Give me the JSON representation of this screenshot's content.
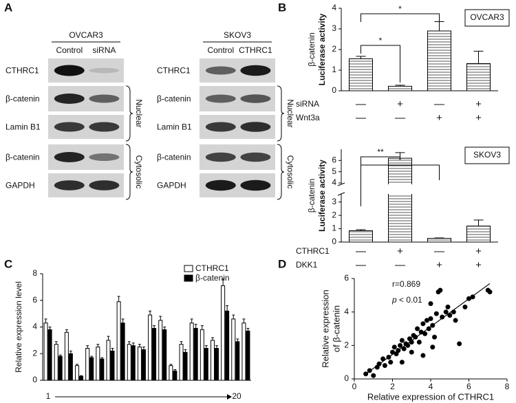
{
  "panels": {
    "A": {
      "letter": "A",
      "blots": [
        {
          "cell_line": "OVCAR3",
          "lanes": [
            "Control",
            "siRNA"
          ],
          "rows": [
            "CTHRC1",
            "β-catenin",
            "Lamin B1",
            "β-catenin",
            "GAPDH"
          ],
          "groups": [
            "Nuclear",
            "Cytosolic"
          ]
        },
        {
          "cell_line": "SKOV3",
          "lanes": [
            "Control",
            "CTHRC1"
          ],
          "rows": [
            "CTHRC1",
            "β-catenin",
            "Lamin B1",
            "β-catenin",
            "GAPDH"
          ],
          "groups": [
            "Nuclear",
            "Cytosolic"
          ]
        }
      ]
    },
    "B": {
      "letter": "B"
    },
    "C": {
      "letter": "C"
    },
    "D": {
      "letter": "D"
    }
  },
  "chart_data": [
    {
      "type": "bar",
      "legend_box": "OVCAR3",
      "y_label": [
        "β-catenin",
        "Luciferase activity"
      ],
      "categories": [
        null,
        null,
        null,
        null
      ],
      "values": [
        1.55,
        0.22,
        2.9,
        1.32
      ],
      "errors": [
        0.12,
        0.05,
        0.45,
        0.6
      ],
      "color": "#ffffff",
      "hatch": true,
      "ylim": [
        0,
        4
      ],
      "yticks": [
        0,
        1,
        2,
        3,
        4
      ],
      "significance": [
        "*",
        "*"
      ],
      "treatments": [
        {
          "name": "siRNA",
          "signs": [
            "—",
            "+",
            "—",
            "+"
          ]
        },
        {
          "name": "Wnt3a",
          "signs": [
            "—",
            "—",
            "+",
            "+"
          ]
        }
      ]
    },
    {
      "type": "bar",
      "legend_box": "SKOV3",
      "y_label": [
        "β-catenin",
        "Luciferase activity"
      ],
      "categories": [
        null,
        null,
        null,
        null
      ],
      "values": [
        0.85,
        6.2,
        0.28,
        1.2
      ],
      "errors": [
        0.08,
        0.5,
        0.03,
        0.45
      ],
      "color": "#ffffff",
      "hatch": true,
      "ylim": [
        0,
        7
      ],
      "yticks": [
        0,
        1,
        2,
        3,
        4,
        5,
        6
      ],
      "axis_break": [
        3.5,
        4
      ],
      "significance": [
        "**",
        "*"
      ],
      "treatments": [
        {
          "name": "CTHRC1",
          "signs": [
            "—",
            "+",
            "—",
            "+"
          ]
        },
        {
          "name": "DKK1",
          "signs": [
            "—",
            "—",
            "+",
            "+"
          ]
        }
      ]
    },
    {
      "type": "grouped_bar",
      "y_label": "Relative expression level",
      "x_annotations": [
        "1",
        "20"
      ],
      "categories": [
        null,
        null,
        null,
        null,
        null,
        null,
        null,
        null,
        null,
        null,
        null,
        null,
        null,
        null,
        null,
        null,
        null,
        null,
        null,
        null
      ],
      "series": [
        {
          "name": "CTHRC1",
          "color": "#ffffff",
          "values": [
            4.3,
            2.7,
            3.6,
            1.1,
            2.4,
            2.5,
            3.0,
            5.9,
            2.7,
            2.5,
            4.9,
            4.5,
            1.1,
            2.7,
            4.3,
            3.8,
            3.0,
            7.1,
            4.6,
            4.3
          ],
          "errors": [
            0.3,
            0.2,
            0.2,
            0.1,
            0.2,
            0.2,
            0.3,
            0.4,
            0.2,
            0.2,
            0.3,
            0.3,
            0.1,
            0.2,
            0.3,
            0.3,
            0.2,
            0.5,
            0.3,
            0.3
          ]
        },
        {
          "name": "β-catenin",
          "color": "#000000",
          "values": [
            3.8,
            1.8,
            2.0,
            0.3,
            1.7,
            1.6,
            2.2,
            4.3,
            2.6,
            2.3,
            3.9,
            3.8,
            0.7,
            2.1,
            3.9,
            2.4,
            2.4,
            5.2,
            2.9,
            3.7
          ],
          "errors": [
            0.2,
            0.1,
            0.2,
            0.05,
            0.1,
            0.1,
            0.2,
            0.3,
            0.2,
            0.2,
            0.2,
            0.2,
            0.1,
            0.2,
            0.3,
            0.2,
            0.2,
            0.4,
            0.2,
            0.2
          ]
        }
      ],
      "ylim": [
        0,
        8
      ],
      "yticks": [
        0,
        2,
        4,
        6,
        8
      ]
    },
    {
      "type": "scatter",
      "x_label": "Relative expression of CTHRC1",
      "y_label": [
        "Relative expression",
        "of β-catenin"
      ],
      "annotations": {
        "r": "r=0.869",
        "p": "p",
        "p_rest": " < 0.01"
      },
      "color": "#000000",
      "x": [
        0.6,
        0.8,
        1.0,
        1.2,
        1.3,
        1.5,
        1.6,
        1.8,
        1.9,
        2.0,
        2.1,
        2.2,
        2.3,
        2.4,
        2.5,
        2.6,
        2.7,
        2.8,
        2.9,
        3.0,
        3.0,
        3.1,
        3.2,
        3.3,
        3.4,
        3.5,
        3.6,
        3.7,
        3.8,
        3.9,
        4.0,
        4.1,
        4.2,
        4.3,
        4.4,
        4.5,
        4.6,
        4.8,
        4.9,
        5.0,
        5.2,
        5.5,
        5.8,
        6.0,
        6.2,
        7.0,
        7.1,
        2.5,
        3.6,
        4.1,
        4.0,
        5.3
      ],
      "y": [
        0.3,
        0.5,
        0.2,
        0.7,
        0.9,
        1.2,
        0.8,
        1.3,
        1.0,
        1.6,
        1.9,
        1.5,
        1.7,
        2.0,
        2.3,
        1.8,
        2.1,
        2.0,
        2.4,
        2.2,
        1.6,
        2.6,
        2.5,
        3.0,
        2.2,
        2.8,
        3.3,
        2.7,
        3.5,
        3.0,
        3.6,
        3.2,
        2.5,
        3.9,
        5.2,
        5.3,
        3.7,
        4.0,
        4.3,
        3.8,
        4.0,
        2.1,
        4.3,
        4.8,
        4.9,
        5.3,
        5.2,
        1.0,
        1.4,
        1.9,
        4.5,
        3.5
      ],
      "fit_line": {
        "x": [
          0.6,
          7.1
        ],
        "y": [
          0.3,
          5.7
        ]
      },
      "xlim": [
        0,
        8
      ],
      "xticks": [
        0,
        2,
        4,
        6,
        8
      ],
      "ylim": [
        0,
        6
      ],
      "yticks": [
        0,
        2,
        4,
        6
      ]
    }
  ]
}
